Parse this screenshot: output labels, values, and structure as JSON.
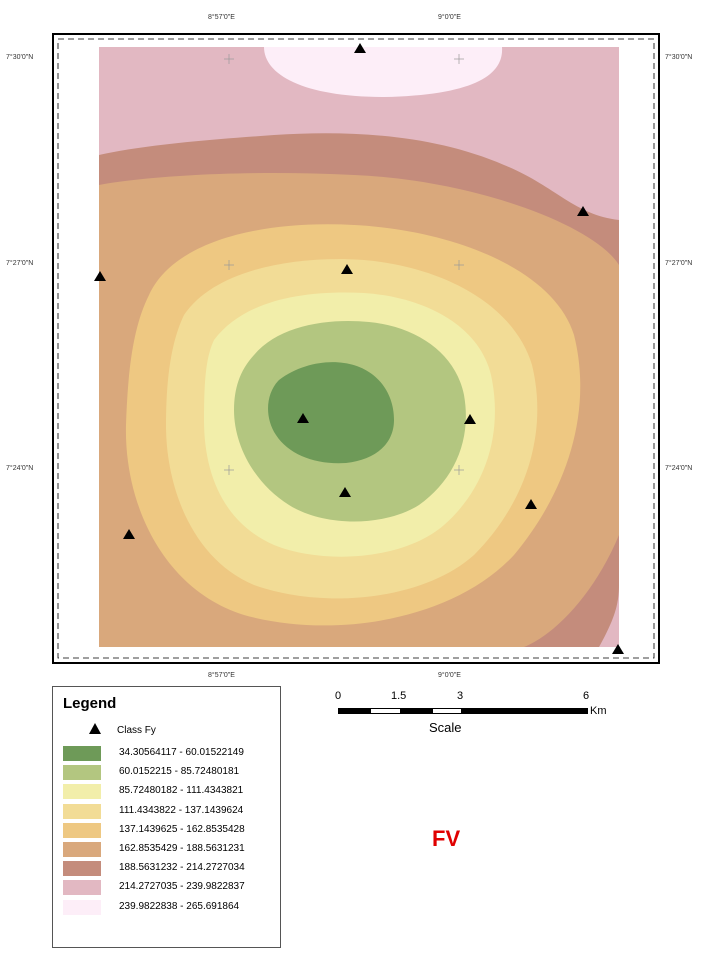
{
  "map": {
    "top_ticks": [
      "8°57'0\"E",
      "9°0'0\"E"
    ],
    "bottom_ticks": [
      "8°57'0\"E",
      "9°0'0\"E"
    ],
    "left_ticks": [
      "7°30'0\"N",
      "7°27'0\"N",
      "7°24'0\"N"
    ],
    "right_ticks": [
      "7°30'0\"N",
      "7°27'0\"N",
      "7°24'0\"N"
    ]
  },
  "legend": {
    "title": "Legend",
    "point_label": "Class Fy",
    "classes": [
      {
        "label": "34.30564117 - 60.01522149",
        "color": "#6e9a58"
      },
      {
        "label": "60.0152215 - 85.72480181",
        "color": "#b3c680"
      },
      {
        "label": "85.72480182 - 111.4343821",
        "color": "#f2eeaa"
      },
      {
        "label": "111.4343822 - 137.1439624",
        "color": "#f2dc96"
      },
      {
        "label": "137.1439625 - 162.8535428",
        "color": "#eec882"
      },
      {
        "label": "162.8535429 - 188.5631231",
        "color": "#d9a87c"
      },
      {
        "label": "188.5631232 - 214.2727034",
        "color": "#c48c7c"
      },
      {
        "label": "214.2727035 - 239.9822837",
        "color": "#e2b8c2"
      },
      {
        "label": "239.9822838 - 265.691864",
        "color": "#fdeef8"
      }
    ]
  },
  "scale": {
    "ticks": [
      "0",
      "1.5",
      "3",
      "6"
    ],
    "unit": "Km",
    "title": "Scale"
  },
  "figure_label": "FV"
}
